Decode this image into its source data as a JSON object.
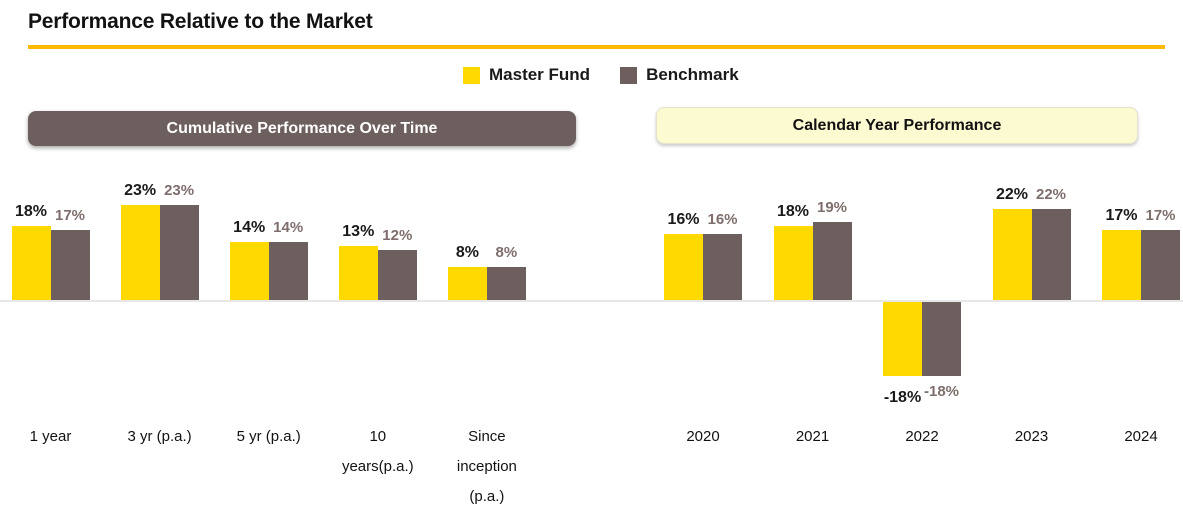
{
  "page": {
    "title": "Performance Relative to the Market"
  },
  "legend": {
    "items": [
      {
        "label": "Master Fund",
        "color": "#FFD900",
        "swatch": "yellow-square"
      },
      {
        "label": "Benchmark",
        "color": "#6E5F5F",
        "swatch": "taupe-square"
      }
    ]
  },
  "sections": {
    "left": "Cumulative Performance Over Time",
    "right": "Calendar Year Performance"
  },
  "colors": {
    "accent_underline": "#FFB900",
    "master_fund": "#FFD900",
    "benchmark": "#6E5F5F",
    "benchmark_label": "#7E6E6C",
    "left_pill_bg": "#6E5F5F",
    "right_pill_bg": "#FCFAD1",
    "baseline": "#E7E7E7"
  },
  "chart_data": [
    {
      "type": "bar",
      "title": "Cumulative Performance Over Time",
      "categories": [
        "1 year",
        "3 yr (p.a.)",
        "5 yr (p.a.)",
        "10 years(p.a.)",
        "Since inception (p.a.)"
      ],
      "unit": "%",
      "series": [
        {
          "name": "Master Fund",
          "values": [
            18,
            23,
            14,
            13,
            8
          ]
        },
        {
          "name": "Benchmark",
          "values": [
            17,
            23,
            14,
            12,
            8
          ]
        }
      ],
      "ylim": [
        -20,
        25
      ],
      "grid": false,
      "data_labels": true,
      "legend_position": "top-center"
    },
    {
      "type": "bar",
      "title": "Calendar Year Performance",
      "categories": [
        "2020",
        "2021",
        "2022",
        "2023",
        "2024"
      ],
      "unit": "%",
      "series": [
        {
          "name": "Master Fund",
          "values": [
            16,
            18,
            -18,
            22,
            17
          ]
        },
        {
          "name": "Benchmark",
          "values": [
            16,
            19,
            -18,
            22,
            17
          ]
        }
      ],
      "ylim": [
        -20,
        25
      ],
      "grid": false,
      "data_labels": true,
      "legend_position": "top-center"
    }
  ]
}
